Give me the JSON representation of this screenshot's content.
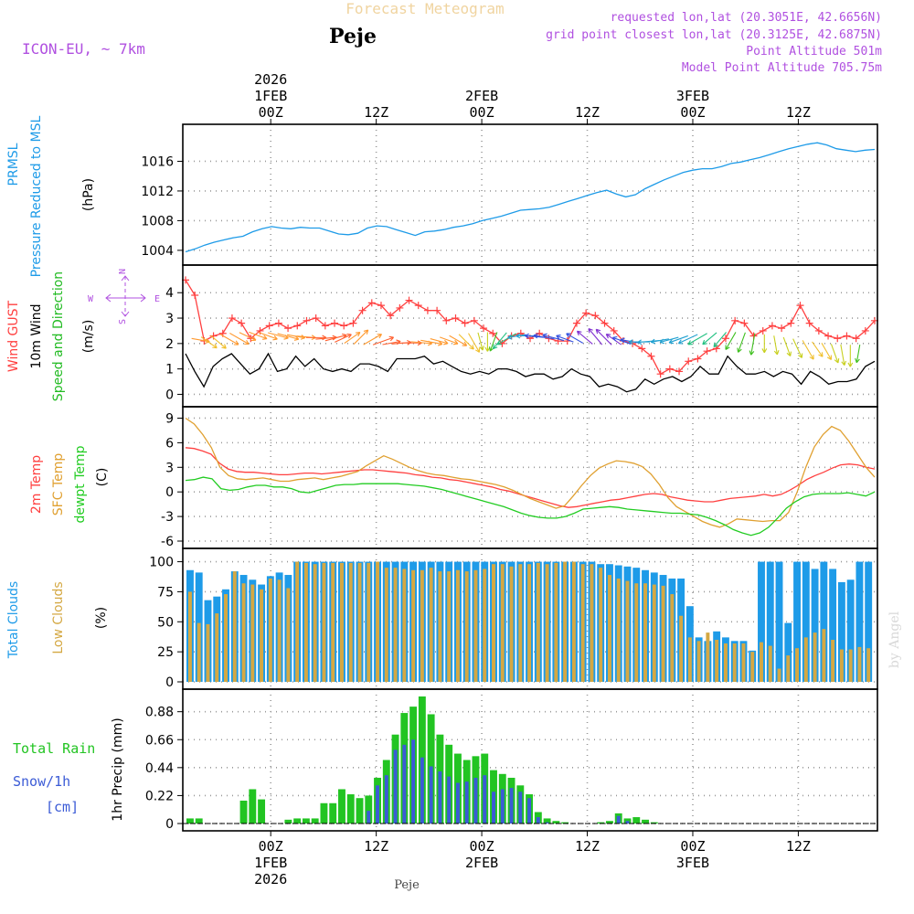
{
  "header": {
    "title": "Forecast Meteogram",
    "location": "Peje",
    "model": "ICON-EU, ~ 7km",
    "requested": "requested lon,lat (20.3051E, 42.6656N)",
    "gridpoint": "grid point closest lon,lat (20.3125E, 42.6875N)",
    "point_alt": "Point Altitude 501m",
    "model_alt": "Model Point Altitude 705.75m",
    "footer": "Peje",
    "watermark": "by Angel"
  },
  "colors": {
    "pressure": "#1e9be8",
    "gust": "#ff4040",
    "wind": "#000000",
    "wind_dir": "#22bb22",
    "temp": "#ff4040",
    "sfc": "#e0a030",
    "dewpt": "#22cc22",
    "total_clouds": "#1e9be8",
    "low_clouds": "#d4a843",
    "rain": "#22c422",
    "snow": "#3b5bd6",
    "purple": "#b050e0"
  },
  "time_axis": {
    "hours_total": 79,
    "top_labels": [
      {
        "hour": 0,
        "l1": "2026",
        "l2": "1FEB",
        "l3": "00Z"
      },
      {
        "hour": 12,
        "l1": "",
        "l2": "",
        "l3": "12Z"
      },
      {
        "hour": 24,
        "l1": "",
        "l2": "2FEB",
        "l3": "00Z"
      },
      {
        "hour": 36,
        "l1": "",
        "l2": "",
        "l3": "12Z"
      },
      {
        "hour": 48,
        "l1": "",
        "l2": "3FEB",
        "l3": "00Z"
      },
      {
        "hour": 60,
        "l1": "",
        "l2": "",
        "l3": "12Z"
      }
    ],
    "bottom_labels": [
      {
        "hour": 0,
        "l1": "00Z",
        "l2": "1FEB",
        "l3": "2026"
      },
      {
        "hour": 12,
        "l1": "12Z",
        "l2": "",
        "l3": ""
      },
      {
        "hour": 24,
        "l1": "00Z",
        "l2": "2FEB",
        "l3": ""
      },
      {
        "hour": 36,
        "l1": "12Z",
        "l2": "",
        "l3": ""
      },
      {
        "hour": 48,
        "l1": "00Z",
        "l2": "3FEB",
        "l3": ""
      },
      {
        "hour": 60,
        "l1": "12Z",
        "l2": "",
        "l3": ""
      }
    ]
  },
  "chart_data": [
    {
      "type": "line",
      "id": "pressure",
      "title": "PRMSL Pressure Reduced to MSL",
      "label_lines": [
        "PRMSL",
        "Pressure Reduced to MSL"
      ],
      "ylabel": "(hPa)",
      "ylim": [
        1003,
        1020
      ],
      "yticks": [
        1004,
        1008,
        1012,
        1016
      ],
      "series": [
        {
          "name": "PRMSL",
          "values": [
            1003.8,
            1004.2,
            1004.7,
            1005.1,
            1005.4,
            1005.7,
            1005.9,
            1006.5,
            1006.9,
            1007.2,
            1007.0,
            1006.9,
            1007.1,
            1007.0,
            1007.0,
            1006.6,
            1006.2,
            1006.1,
            1006.3,
            1007.0,
            1007.3,
            1007.2,
            1006.8,
            1006.4,
            1006.0,
            1006.5,
            1006.6,
            1006.8,
            1007.1,
            1007.3,
            1007.6,
            1008.0,
            1008.3,
            1008.6,
            1009.0,
            1009.4,
            1009.5,
            1009.6,
            1009.8,
            1010.2,
            1010.6,
            1011.0,
            1011.4,
            1011.8,
            1012.1,
            1011.6,
            1011.2,
            1011.5,
            1012.3,
            1012.9,
            1013.5,
            1014.0,
            1014.5,
            1014.8,
            1015.0,
            1015.0,
            1015.3,
            1015.7,
            1015.9,
            1016.2,
            1016.5,
            1016.9,
            1017.3,
            1017.7,
            1018.0,
            1018.3,
            1018.5,
            1018.2,
            1017.7,
            1017.5,
            1017.3,
            1017.5,
            1017.6
          ]
        }
      ]
    },
    {
      "type": "line",
      "id": "wind",
      "title": "Wind GUST / 10m Wind Speed and Direction",
      "label_lines": [
        "Wind GUST",
        "10m Wind",
        "Speed and Direction"
      ],
      "ylabel": "(m/s)",
      "compass": {
        "n": "N",
        "s": "S",
        "w": "W",
        "e": "E"
      },
      "ylim": [
        -0.2,
        4.8
      ],
      "yticks": [
        0,
        1,
        2,
        3,
        4
      ],
      "series": [
        {
          "name": "Wind GUST",
          "values": [
            4.5,
            3.9,
            2.1,
            2.3,
            2.4,
            3.0,
            2.8,
            2.2,
            2.5,
            2.7,
            2.8,
            2.6,
            2.7,
            2.9,
            3.0,
            2.7,
            2.8,
            2.7,
            2.8,
            3.3,
            3.6,
            3.5,
            3.1,
            3.4,
            3.7,
            3.5,
            3.3,
            3.3,
            2.9,
            3.0,
            2.8,
            2.9,
            2.6,
            2.4,
            2.0,
            2.3,
            2.4,
            2.2,
            2.4,
            2.2,
            2.1,
            2.1,
            2.8,
            3.2,
            3.1,
            2.8,
            2.5,
            2.1,
            2.0,
            1.8,
            1.5,
            0.8,
            1.0,
            0.9,
            1.3,
            1.4,
            1.7,
            1.8,
            2.2,
            2.9,
            2.8,
            2.3,
            2.5,
            2.7,
            2.6,
            2.8,
            3.5,
            2.8,
            2.5,
            2.3,
            2.2,
            2.3,
            2.2,
            2.5,
            2.9
          ]
        },
        {
          "name": "10m Wind",
          "values": [
            1.6,
            0.9,
            0.3,
            1.1,
            1.4,
            1.6,
            1.2,
            0.8,
            1.0,
            1.6,
            0.9,
            1.0,
            1.5,
            1.1,
            1.4,
            1.0,
            0.9,
            1.0,
            0.9,
            1.2,
            1.2,
            1.1,
            0.9,
            1.4,
            1.4,
            1.4,
            1.5,
            1.2,
            1.3,
            1.1,
            0.9,
            0.8,
            0.9,
            0.8,
            1.0,
            1.0,
            0.9,
            0.7,
            0.8,
            0.8,
            0.6,
            0.7,
            1.0,
            0.8,
            0.7,
            0.3,
            0.4,
            0.3,
            0.1,
            0.2,
            0.6,
            0.4,
            0.6,
            0.7,
            0.5,
            0.7,
            1.1,
            0.8,
            0.8,
            1.5,
            1.1,
            0.8,
            0.8,
            0.9,
            0.7,
            0.9,
            0.8,
            0.4,
            0.9,
            0.7,
            0.4,
            0.5,
            0.5,
            0.6,
            1.1,
            1.3
          ]
        },
        {
          "name": "Direction arrow angles (deg)",
          "values": [
            -10,
            -35,
            -40,
            -30,
            -30,
            -25,
            -20,
            -20,
            -15,
            -15,
            -10,
            -5,
            0,
            5,
            15,
            25,
            35,
            45,
            30,
            20,
            10,
            5,
            0,
            -5,
            -10,
            -15,
            -20,
            -30,
            -45,
            -60,
            -75,
            -90,
            -110,
            -130,
            -150,
            -170,
            -180,
            -185,
            -190,
            -195,
            -200,
            -210,
            -220,
            -230,
            -225,
            -215,
            -200,
            -190,
            -180,
            -175,
            -170,
            -165,
            -160,
            -155,
            -150,
            -140,
            -130,
            -120,
            -110,
            -100,
            -90,
            -80,
            -70,
            -65,
            -60,
            -55,
            -60,
            -70,
            -80,
            -90,
            -100
          ]
        }
      ]
    },
    {
      "type": "line",
      "id": "temperature",
      "title": "2m Temp / SFC Temp / dewpt Temp",
      "label_lines": [
        "2m Temp",
        "SFC Temp",
        "dewpt Temp"
      ],
      "ylabel": "(C)",
      "ylim": [
        -6,
        9.5
      ],
      "yticks": [
        -6,
        -3,
        0,
        3,
        6,
        9
      ],
      "series": [
        {
          "name": "2m Temp",
          "values": [
            5.4,
            5.3,
            5.0,
            4.6,
            3.5,
            2.8,
            2.5,
            2.4,
            2.4,
            2.3,
            2.2,
            2.1,
            2.1,
            2.2,
            2.3,
            2.3,
            2.2,
            2.3,
            2.4,
            2.5,
            2.6,
            2.7,
            2.7,
            2.6,
            2.5,
            2.4,
            2.3,
            2.1,
            2.0,
            1.8,
            1.7,
            1.5,
            1.4,
            1.2,
            1.0,
            0.8,
            0.6,
            0.3,
            0.1,
            -0.2,
            -0.5,
            -0.8,
            -1.1,
            -1.4,
            -1.7,
            -1.9,
            -1.8,
            -1.6,
            -1.4,
            -1.2,
            -1.0,
            -0.9,
            -0.7,
            -0.5,
            -0.3,
            -0.2,
            -0.3,
            -0.6,
            -0.8,
            -1.0,
            -1.1,
            -1.2,
            -1.2,
            -1.0,
            -0.8,
            -0.7,
            -0.6,
            -0.5,
            -0.3,
            -0.5,
            -0.3,
            0.2,
            0.8,
            1.5,
            2.0,
            2.4,
            2.9,
            3.3,
            3.4,
            3.3,
            3.0,
            2.8
          ]
        },
        {
          "name": "SFC Temp",
          "values": [
            9.0,
            8.3,
            7.0,
            5.4,
            3.0,
            2.0,
            1.6,
            1.5,
            1.6,
            1.7,
            1.5,
            1.3,
            1.3,
            1.5,
            1.6,
            1.7,
            1.5,
            1.7,
            1.9,
            2.2,
            2.5,
            3.2,
            3.8,
            4.4,
            4.0,
            3.5,
            3.0,
            2.6,
            2.3,
            2.1,
            2.0,
            1.8,
            1.6,
            1.5,
            1.3,
            1.1,
            0.9,
            0.6,
            0.2,
            -0.3,
            -0.8,
            -1.2,
            -1.6,
            -2.0,
            -1.7,
            -0.5,
            0.8,
            2.0,
            2.9,
            3.4,
            3.8,
            3.7,
            3.5,
            3.1,
            2.2,
            0.9,
            -0.7,
            -1.8,
            -2.4,
            -3.0,
            -3.6,
            -4.0,
            -4.3,
            -3.9,
            -3.3,
            -3.4,
            -3.5,
            -3.6,
            -3.5,
            -3.5,
            -2.5,
            0.0,
            3.0,
            5.5,
            7.0,
            8.0,
            7.5,
            6.2,
            4.6,
            3.0,
            1.8
          ]
        },
        {
          "name": "dewpt Temp",
          "values": [
            1.4,
            1.5,
            1.8,
            1.6,
            0.4,
            0.2,
            0.3,
            0.6,
            0.8,
            0.8,
            0.6,
            0.6,
            0.4,
            0.0,
            -0.1,
            0.2,
            0.5,
            0.8,
            0.9,
            0.9,
            1.0,
            1.0,
            1.0,
            1.0,
            1.0,
            0.9,
            0.8,
            0.7,
            0.5,
            0.3,
            0.0,
            -0.3,
            -0.6,
            -0.9,
            -1.2,
            -1.5,
            -1.8,
            -2.2,
            -2.6,
            -2.9,
            -3.1,
            -3.2,
            -3.2,
            -3.0,
            -2.6,
            -2.1,
            -2.0,
            -1.9,
            -1.8,
            -1.9,
            -2.1,
            -2.2,
            -2.3,
            -2.4,
            -2.5,
            -2.6,
            -2.6,
            -2.7,
            -2.8,
            -3.1,
            -3.5,
            -4.0,
            -4.6,
            -5.0,
            -5.3,
            -5.0,
            -4.3,
            -3.2,
            -2.0,
            -1.2,
            -0.6,
            -0.3,
            -0.2,
            -0.2,
            -0.2,
            -0.1,
            -0.3,
            -0.5,
            0.0
          ]
        }
      ]
    },
    {
      "type": "bar",
      "id": "clouds",
      "title": "Total Clouds / Low Clouds",
      "label_lines": [
        "Total Clouds",
        "Low Clouds"
      ],
      "ylabel": "(%)",
      "ylim": [
        0,
        105
      ],
      "yticks": [
        0,
        25,
        50,
        75,
        100
      ],
      "series": [
        {
          "name": "Total Clouds",
          "values": [
            93,
            91,
            68,
            71,
            77,
            92,
            89,
            85,
            81,
            88,
            91,
            89,
            100,
            100,
            100,
            100,
            100,
            100,
            100,
            100,
            100,
            100,
            100,
            100,
            100,
            100,
            100,
            100,
            100,
            100,
            100,
            100,
            100,
            100,
            100,
            100,
            100,
            100,
            100,
            100,
            100,
            100,
            100,
            100,
            100,
            100,
            98,
            98,
            97,
            96,
            95,
            93,
            91,
            89,
            86,
            86,
            63,
            37,
            34,
            42,
            37,
            34,
            34,
            26,
            100,
            100,
            100,
            49,
            100,
            100,
            94,
            100,
            94,
            83,
            85,
            100,
            100
          ]
        },
        {
          "name": "Low Clouds",
          "values": [
            75,
            49,
            48,
            57,
            73,
            92,
            82,
            81,
            77,
            86,
            85,
            78,
            100,
            99,
            98,
            99,
            99,
            99,
            99,
            99,
            99,
            100,
            95,
            95,
            94,
            93,
            93,
            95,
            92,
            92,
            93,
            92,
            93,
            94,
            98,
            98,
            96,
            98,
            98,
            99,
            98,
            99,
            100,
            100,
            98,
            98,
            95,
            89,
            86,
            84,
            82,
            82,
            81,
            80,
            73,
            55,
            37,
            34,
            41,
            35,
            32,
            32,
            32,
            25,
            33,
            30,
            11,
            22,
            28,
            37,
            41,
            44,
            35,
            27,
            27,
            29,
            28
          ]
        }
      ]
    },
    {
      "type": "bar",
      "id": "precip",
      "title": "1hr Precip (mm)",
      "label_lines": [
        "Total   Rain",
        "Snow/1h",
        "[cm]"
      ],
      "ylabel": "1hr Precip (mm)",
      "ylim": [
        0,
        1.0
      ],
      "yticks": [
        0,
        0.22,
        0.44,
        0.66,
        0.88
      ],
      "series": [
        {
          "name": "Total Rain",
          "values": [
            0.04,
            0.04,
            0.0,
            0.0,
            0.0,
            0.0,
            0.18,
            0.27,
            0.19,
            0.0,
            0.0,
            0.03,
            0.04,
            0.04,
            0.04,
            0.16,
            0.16,
            0.27,
            0.23,
            0.2,
            0.22,
            0.36,
            0.5,
            0.7,
            0.87,
            0.92,
            1.0,
            0.86,
            0.7,
            0.62,
            0.55,
            0.5,
            0.53,
            0.55,
            0.42,
            0.39,
            0.36,
            0.3,
            0.23,
            0.09,
            0.04,
            0.02,
            0.01,
            0.0,
            0.0,
            0.0,
            0.01,
            0.02,
            0.08,
            0.04,
            0.05,
            0.03,
            0.01,
            0.0,
            0.0,
            0.0,
            0.0,
            0.0,
            0.0,
            0.0,
            0.0,
            0.0,
            0.0,
            0.0,
            0.0,
            0.0,
            0.0,
            0.0,
            0.0,
            0.0,
            0.0,
            0.0,
            0.0,
            0.0,
            0.0,
            0.0,
            0.0
          ]
        },
        {
          "name": "Snow/1h",
          "values": [
            0.0,
            0.0,
            0.0,
            0.0,
            0.0,
            0.0,
            0.0,
            0.0,
            0.0,
            0.0,
            0.0,
            0.0,
            0.0,
            0.0,
            0.0,
            0.0,
            0.0,
            0.0,
            0.0,
            0.0,
            0.1,
            0.3,
            0.38,
            0.58,
            0.62,
            0.66,
            0.52,
            0.45,
            0.41,
            0.37,
            0.32,
            0.33,
            0.36,
            0.38,
            0.25,
            0.27,
            0.28,
            0.25,
            0.2,
            0.05,
            0.01,
            0.0,
            0.0,
            0.0,
            0.0,
            0.0,
            0.0,
            0.0,
            0.06,
            0.02,
            0.0,
            0.0,
            0.0,
            0.0,
            0.0,
            0.0,
            0.0,
            0.0,
            0.0,
            0.0,
            0.0,
            0.0,
            0.0,
            0.0,
            0.0,
            0.0,
            0.0,
            0.0,
            0.0,
            0.0,
            0.0,
            0.0,
            0.0,
            0.0,
            0.0,
            0.0,
            0.0
          ]
        }
      ]
    }
  ]
}
